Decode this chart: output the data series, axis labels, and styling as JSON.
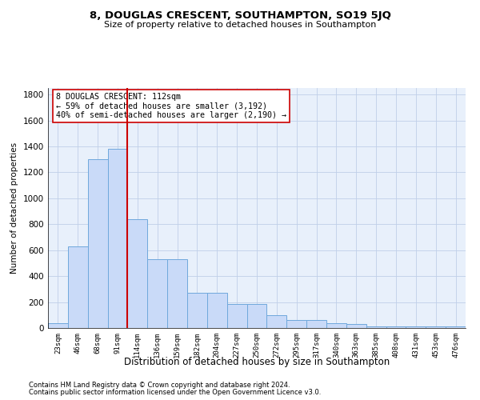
{
  "title": "8, DOUGLAS CRESCENT, SOUTHAMPTON, SO19 5JQ",
  "subtitle": "Size of property relative to detached houses in Southampton",
  "xlabel": "Distribution of detached houses by size in Southampton",
  "ylabel": "Number of detached properties",
  "bar_labels": [
    "23sqm",
    "46sqm",
    "68sqm",
    "91sqm",
    "114sqm",
    "136sqm",
    "159sqm",
    "182sqm",
    "204sqm",
    "227sqm",
    "250sqm",
    "272sqm",
    "295sqm",
    "317sqm",
    "340sqm",
    "363sqm",
    "385sqm",
    "408sqm",
    "431sqm",
    "453sqm",
    "476sqm"
  ],
  "bar_values": [
    40,
    630,
    1300,
    1380,
    840,
    530,
    530,
    270,
    270,
    185,
    185,
    100,
    60,
    60,
    35,
    30,
    15,
    10,
    10,
    10,
    10
  ],
  "bar_color": "#c9daf8",
  "bar_edge_color": "#6fa8dc",
  "vline_color": "#cc0000",
  "vline_index": 3.5,
  "annotation_text": "8 DOUGLAS CRESCENT: 112sqm\n← 59% of detached houses are smaller (3,192)\n40% of semi-detached houses are larger (2,190) →",
  "annotation_box_color": "#ffffff",
  "annotation_box_edge": "#cc0000",
  "ylim": [
    0,
    1850
  ],
  "yticks": [
    0,
    200,
    400,
    600,
    800,
    1000,
    1200,
    1400,
    1600,
    1800
  ],
  "footer1": "Contains HM Land Registry data © Crown copyright and database right 2024.",
  "footer2": "Contains public sector information licensed under the Open Government Licence v3.0.",
  "bg_color": "#ffffff",
  "plot_bg_color": "#e8f0fb",
  "grid_color": "#c0cfe8"
}
